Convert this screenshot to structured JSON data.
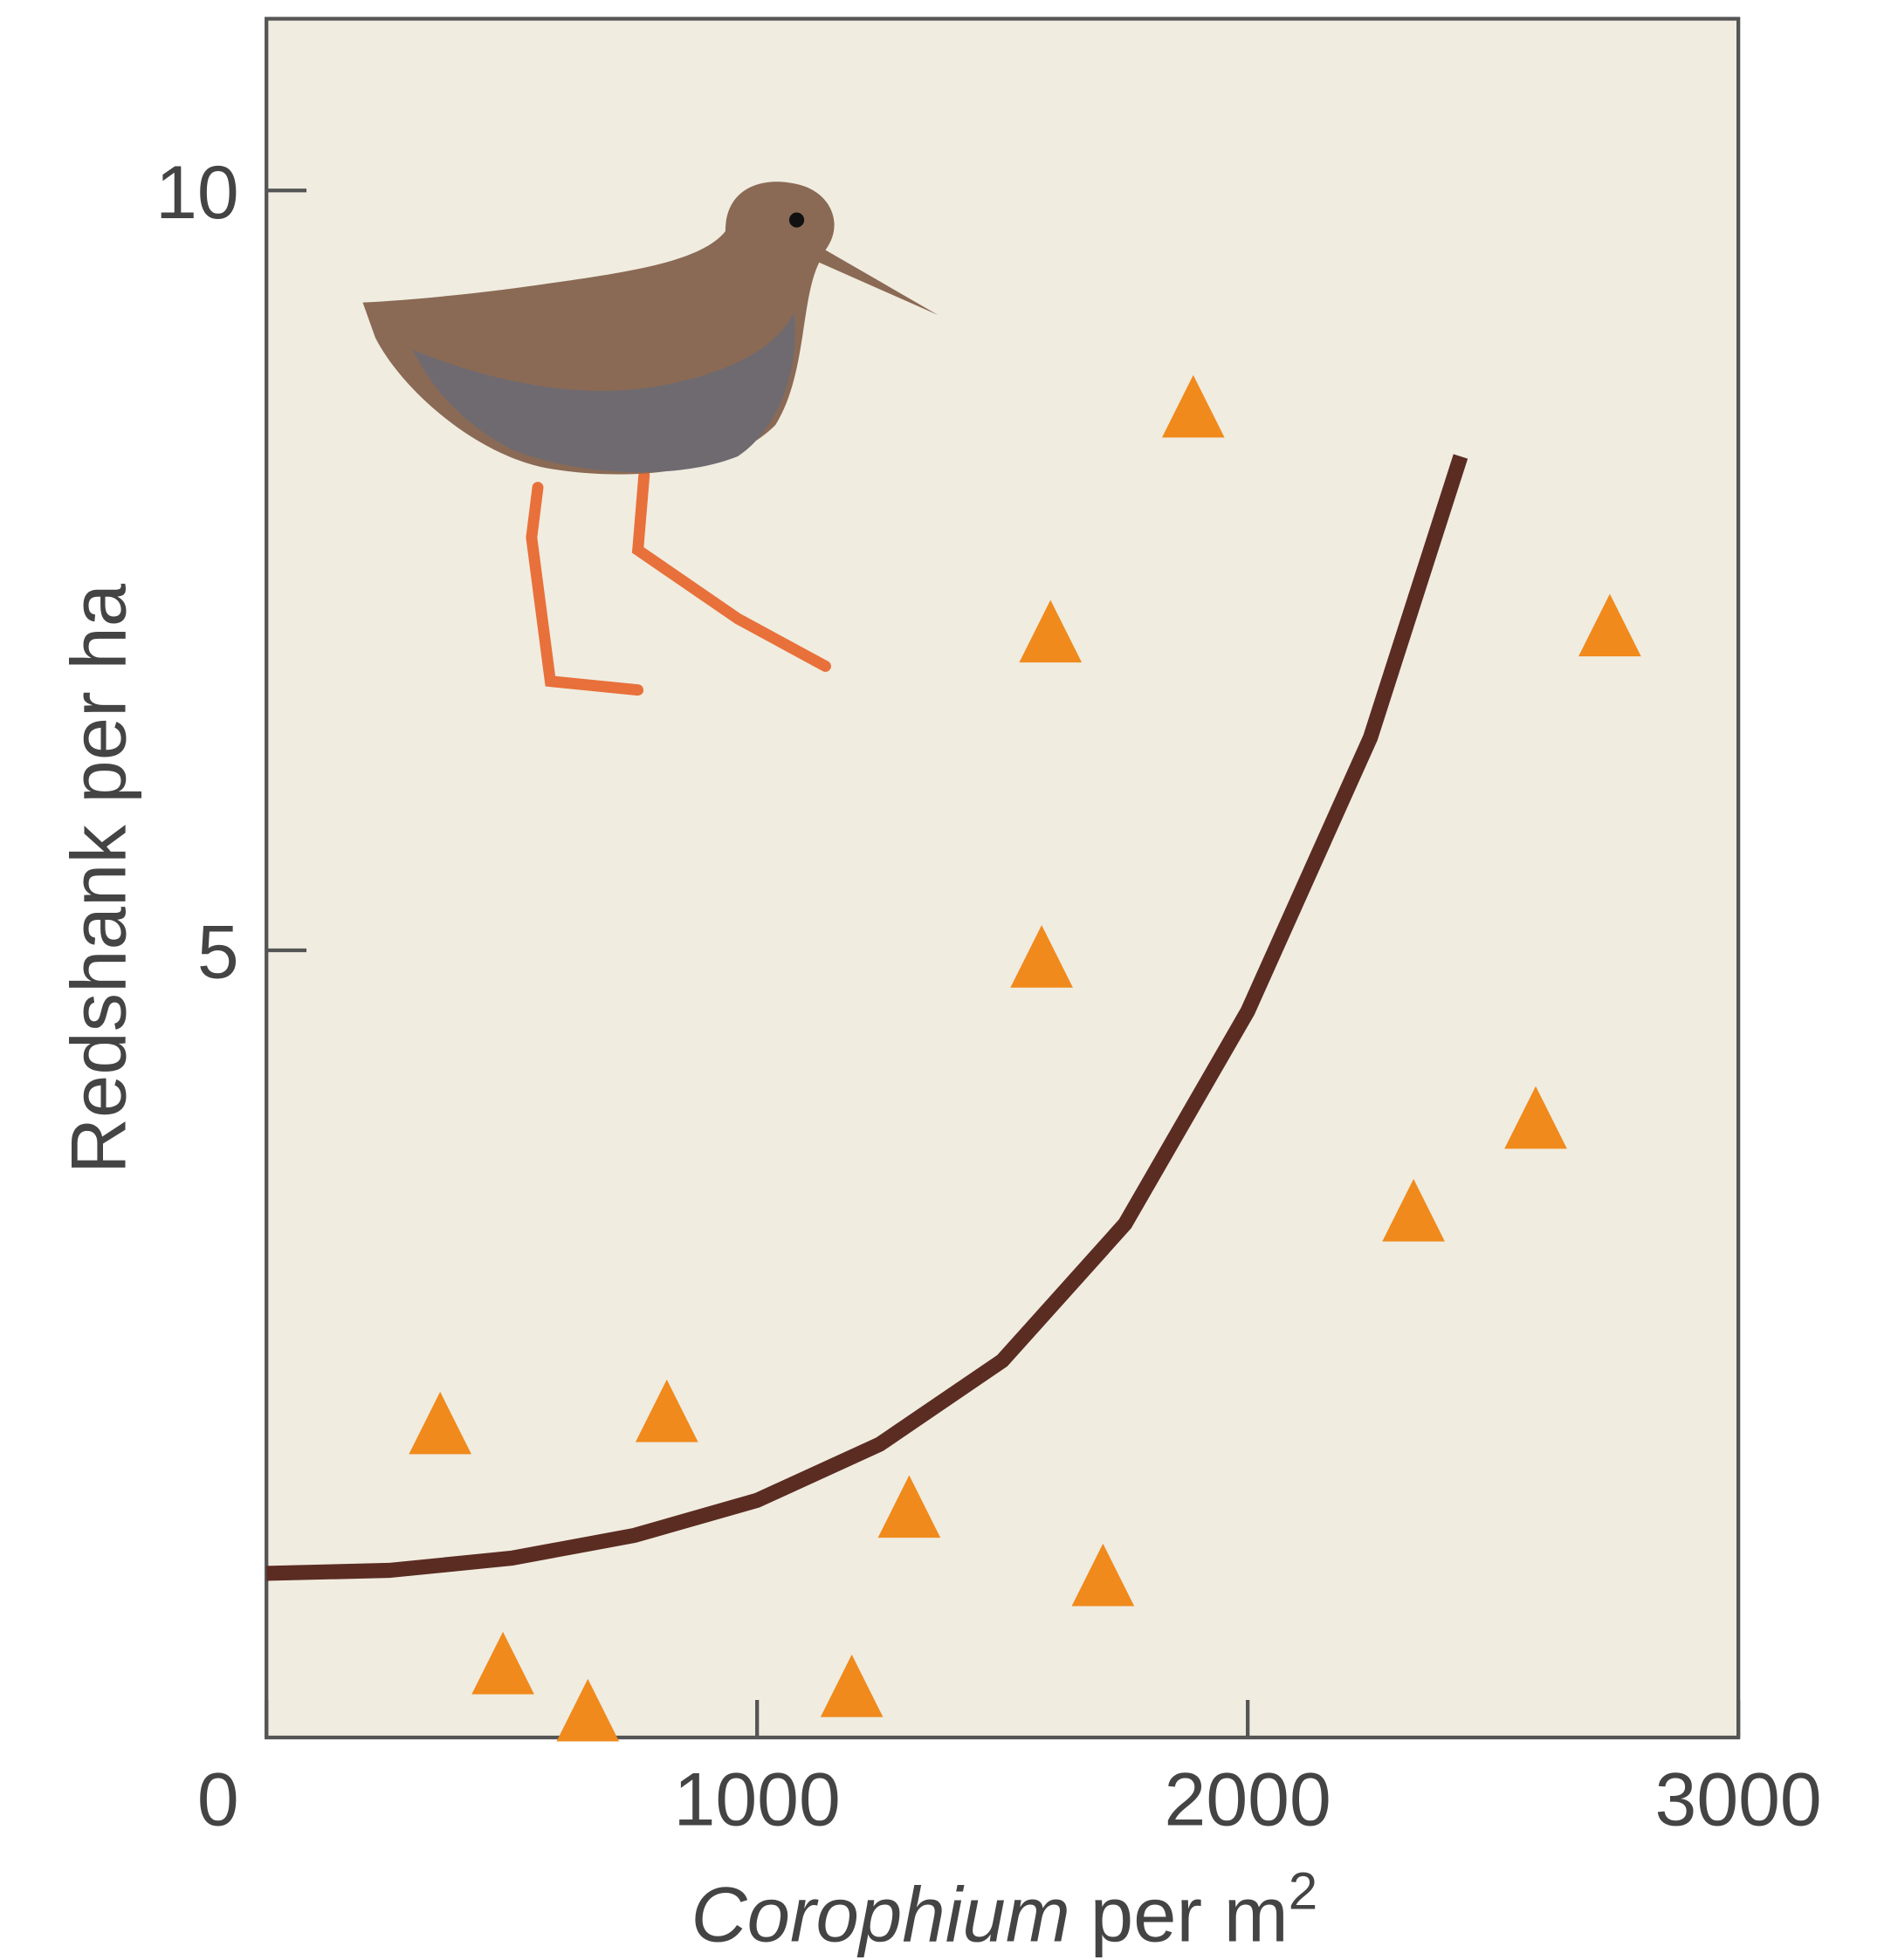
{
  "chart_data": {
    "type": "scatter",
    "xlabel": [
      "Corophium",
      "per m",
      "2"
    ],
    "ylabel": "Redshank per ha",
    "x": [
      354,
      816,
      482,
      655,
      1193,
      1310,
      1705,
      1580,
      1598,
      1889,
      2338,
      2587,
      2738
    ],
    "values": [
      1.89,
      1.97,
      0.31,
      0,
      0.16,
      1.34,
      0.89,
      4.96,
      7.1,
      8.58,
      3.29,
      3.9,
      7.14
    ],
    "color": "#f08a1c",
    "curve": {
      "color": "#5b2c22",
      "x": [
        0,
        250,
        500,
        750,
        1000,
        1250,
        1500,
        1750,
        2000,
        2250,
        2434
      ],
      "values": [
        0.9,
        0.92,
        1.0,
        1.15,
        1.38,
        1.75,
        2.3,
        3.2,
        4.6,
        6.4,
        8.25
      ]
    },
    "xlim": [
      0,
      3000
    ],
    "xticks": [
      0,
      1000,
      2000,
      3000
    ],
    "ylim": [
      -0.18,
      11.13
    ],
    "yticks": [
      5,
      10
    ]
  }
}
